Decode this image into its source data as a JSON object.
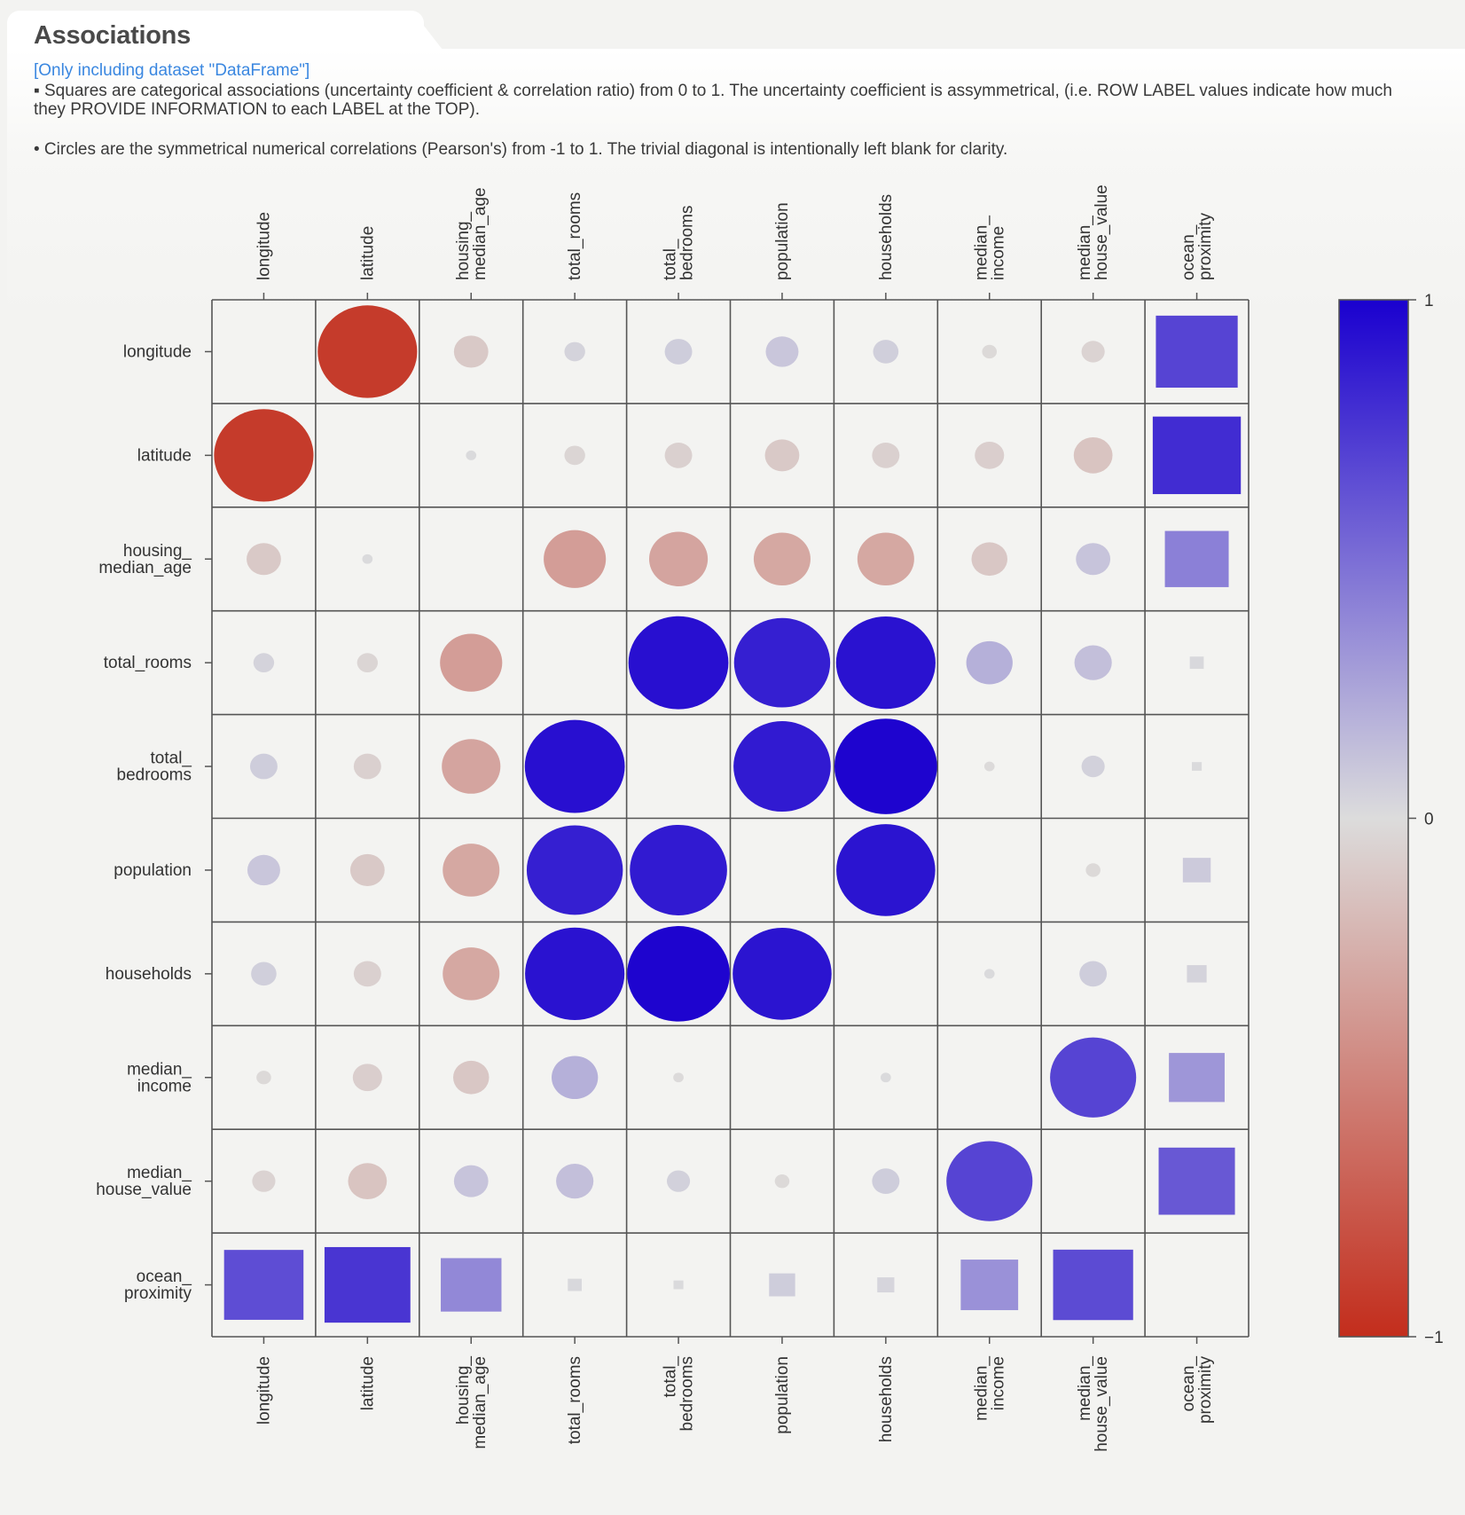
{
  "section": {
    "title": "Associations",
    "dataset_note": "[Only including dataset \"DataFrame\"]",
    "description_squares": "▪ Squares are categorical associations (uncertainty coefficient & correlation ratio) from 0 to 1. The uncertainty coefficient is assymmetrical, (i.e. ROW LABEL values indicate how much they PROVIDE INFORMATION to each LABEL at the TOP).",
    "description_circles": "• Circles are the symmetrical numerical correlations (Pearson's) from -1 to 1. The trivial diagonal is intentionally left blank for clarity."
  },
  "chart_data": {
    "type": "heatmap",
    "title": "",
    "labels": [
      [
        "longitude"
      ],
      [
        "latitude"
      ],
      [
        "housing_",
        "median_age"
      ],
      [
        "total_rooms"
      ],
      [
        "total_",
        "bedrooms"
      ],
      [
        "population"
      ],
      [
        "households"
      ],
      [
        "median_",
        "income"
      ],
      [
        "median_",
        "house_value"
      ],
      [
        "ocean_",
        "proximity"
      ]
    ],
    "colorbar": {
      "range": [
        -1,
        1
      ],
      "ticks": [
        "1",
        "0",
        "−1"
      ],
      "colors": {
        "neg": "#c32d1c",
        "zero": "#dcdcdc",
        "pos": "#1a00cf"
      }
    },
    "cell_types": "Rows/columns 0-8 are numerical (circles, Pearson's r); row/column 9 is categorical (squares, association 0-1). Diagonal is blank.",
    "values": [
      [
        null,
        -0.92,
        -0.11,
        0.04,
        0.07,
        0.1,
        0.06,
        -0.02,
        -0.05,
        0.69
      ],
      [
        -0.92,
        null,
        0.01,
        -0.04,
        -0.07,
        -0.11,
        -0.07,
        -0.08,
        -0.14,
        0.8
      ],
      [
        -0.11,
        0.01,
        null,
        -0.36,
        -0.32,
        -0.3,
        -0.3,
        -0.12,
        0.11,
        0.42
      ],
      [
        0.04,
        -0.04,
        -0.36,
        null,
        0.93,
        0.86,
        0.92,
        0.2,
        0.13,
        0.02
      ],
      [
        0.07,
        -0.07,
        -0.32,
        0.93,
        null,
        0.88,
        0.98,
        -0.01,
        0.05,
        0.01
      ],
      [
        0.1,
        -0.11,
        -0.3,
        0.86,
        0.88,
        null,
        0.91,
        0.0,
        -0.02,
        0.08
      ],
      [
        0.06,
        -0.07,
        -0.3,
        0.92,
        0.98,
        0.91,
        null,
        0.01,
        0.07,
        0.04
      ],
      [
        -0.02,
        -0.08,
        -0.12,
        0.2,
        -0.01,
        0.0,
        0.01,
        null,
        0.69,
        0.32
      ],
      [
        -0.05,
        -0.14,
        0.11,
        0.13,
        0.05,
        -0.02,
        0.07,
        0.69,
        null,
        0.6
      ],
      [
        0.65,
        0.76,
        0.38,
        0.02,
        0.01,
        0.07,
        0.03,
        0.34,
        0.66,
        null
      ]
    ]
  }
}
